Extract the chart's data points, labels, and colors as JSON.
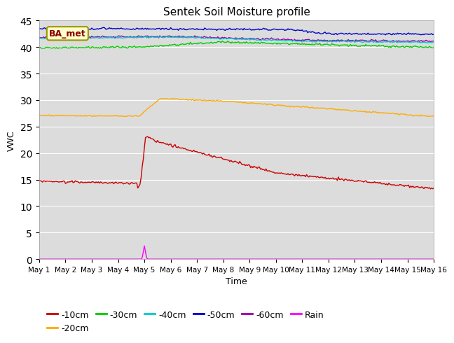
{
  "title": "Sentek Soil Moisture profile",
  "xlabel": "Time",
  "ylabel": "VWC",
  "label_text": "BA_met",
  "xlim": [
    0,
    15
  ],
  "ylim": [
    0,
    45
  ],
  "yticks": [
    0,
    5,
    10,
    15,
    20,
    25,
    30,
    35,
    40,
    45
  ],
  "xtick_labels": [
    "May 1",
    "May 2",
    "May 3",
    "May 4",
    "May 5",
    "May 6",
    "May 7",
    "May 8",
    "May 9",
    "May 10",
    "May 11",
    "May 12",
    "May 13",
    "May 14",
    "May 15",
    "May 16"
  ],
  "bg_color": "#dcdcdc",
  "line_colors": {
    "-10cm": "#cc0000",
    "-20cm": "#ffaa00",
    "-30cm": "#00cc00",
    "-40cm": "#00cccc",
    "-50cm": "#0000cc",
    "-60cm": "#9900aa",
    "Rain": "#ff00ff"
  },
  "legend_labels": [
    "-10cm",
    "-20cm",
    "-30cm",
    "-40cm",
    "-50cm",
    "-60cm",
    "Rain"
  ]
}
